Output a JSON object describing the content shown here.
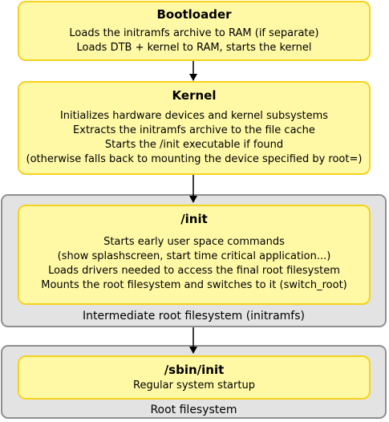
{
  "boxes": {
    "bootloader": {
      "title": "Bootloader",
      "lines": [
        "Loads the initramfs archive to RAM (if separate)",
        "Loads DTB + kernel to RAM, starts the kernel"
      ]
    },
    "kernel": {
      "title": "Kernel",
      "lines": [
        "Initializes hardware devices and kernel subsystems",
        "Extracts the initramfs archive to the file cache",
        "Starts the /init executable if found",
        "(otherwise falls back to mounting the device specified by root=)"
      ]
    },
    "init": {
      "title": "/init",
      "lines": [
        "Starts early user space commands",
        "(show splashscreen, start time critical application...)",
        "Loads drivers needed to access the final root filesystem",
        "Mounts the root filesystem and switches to it (switch_root)"
      ]
    },
    "sbin_init": {
      "title": "/sbin/init",
      "lines": [
        "Regular system startup"
      ]
    }
  },
  "containers": {
    "initramfs": {
      "label": "Intermediate root filesystem (initramfs)"
    },
    "rootfs": {
      "label": "Root filesystem"
    }
  },
  "colors": {
    "box_fill": "#fff9a6",
    "box_border": "#f7d21c",
    "container_fill": "#e3e3e3",
    "container_border": "#8f8f8f"
  }
}
